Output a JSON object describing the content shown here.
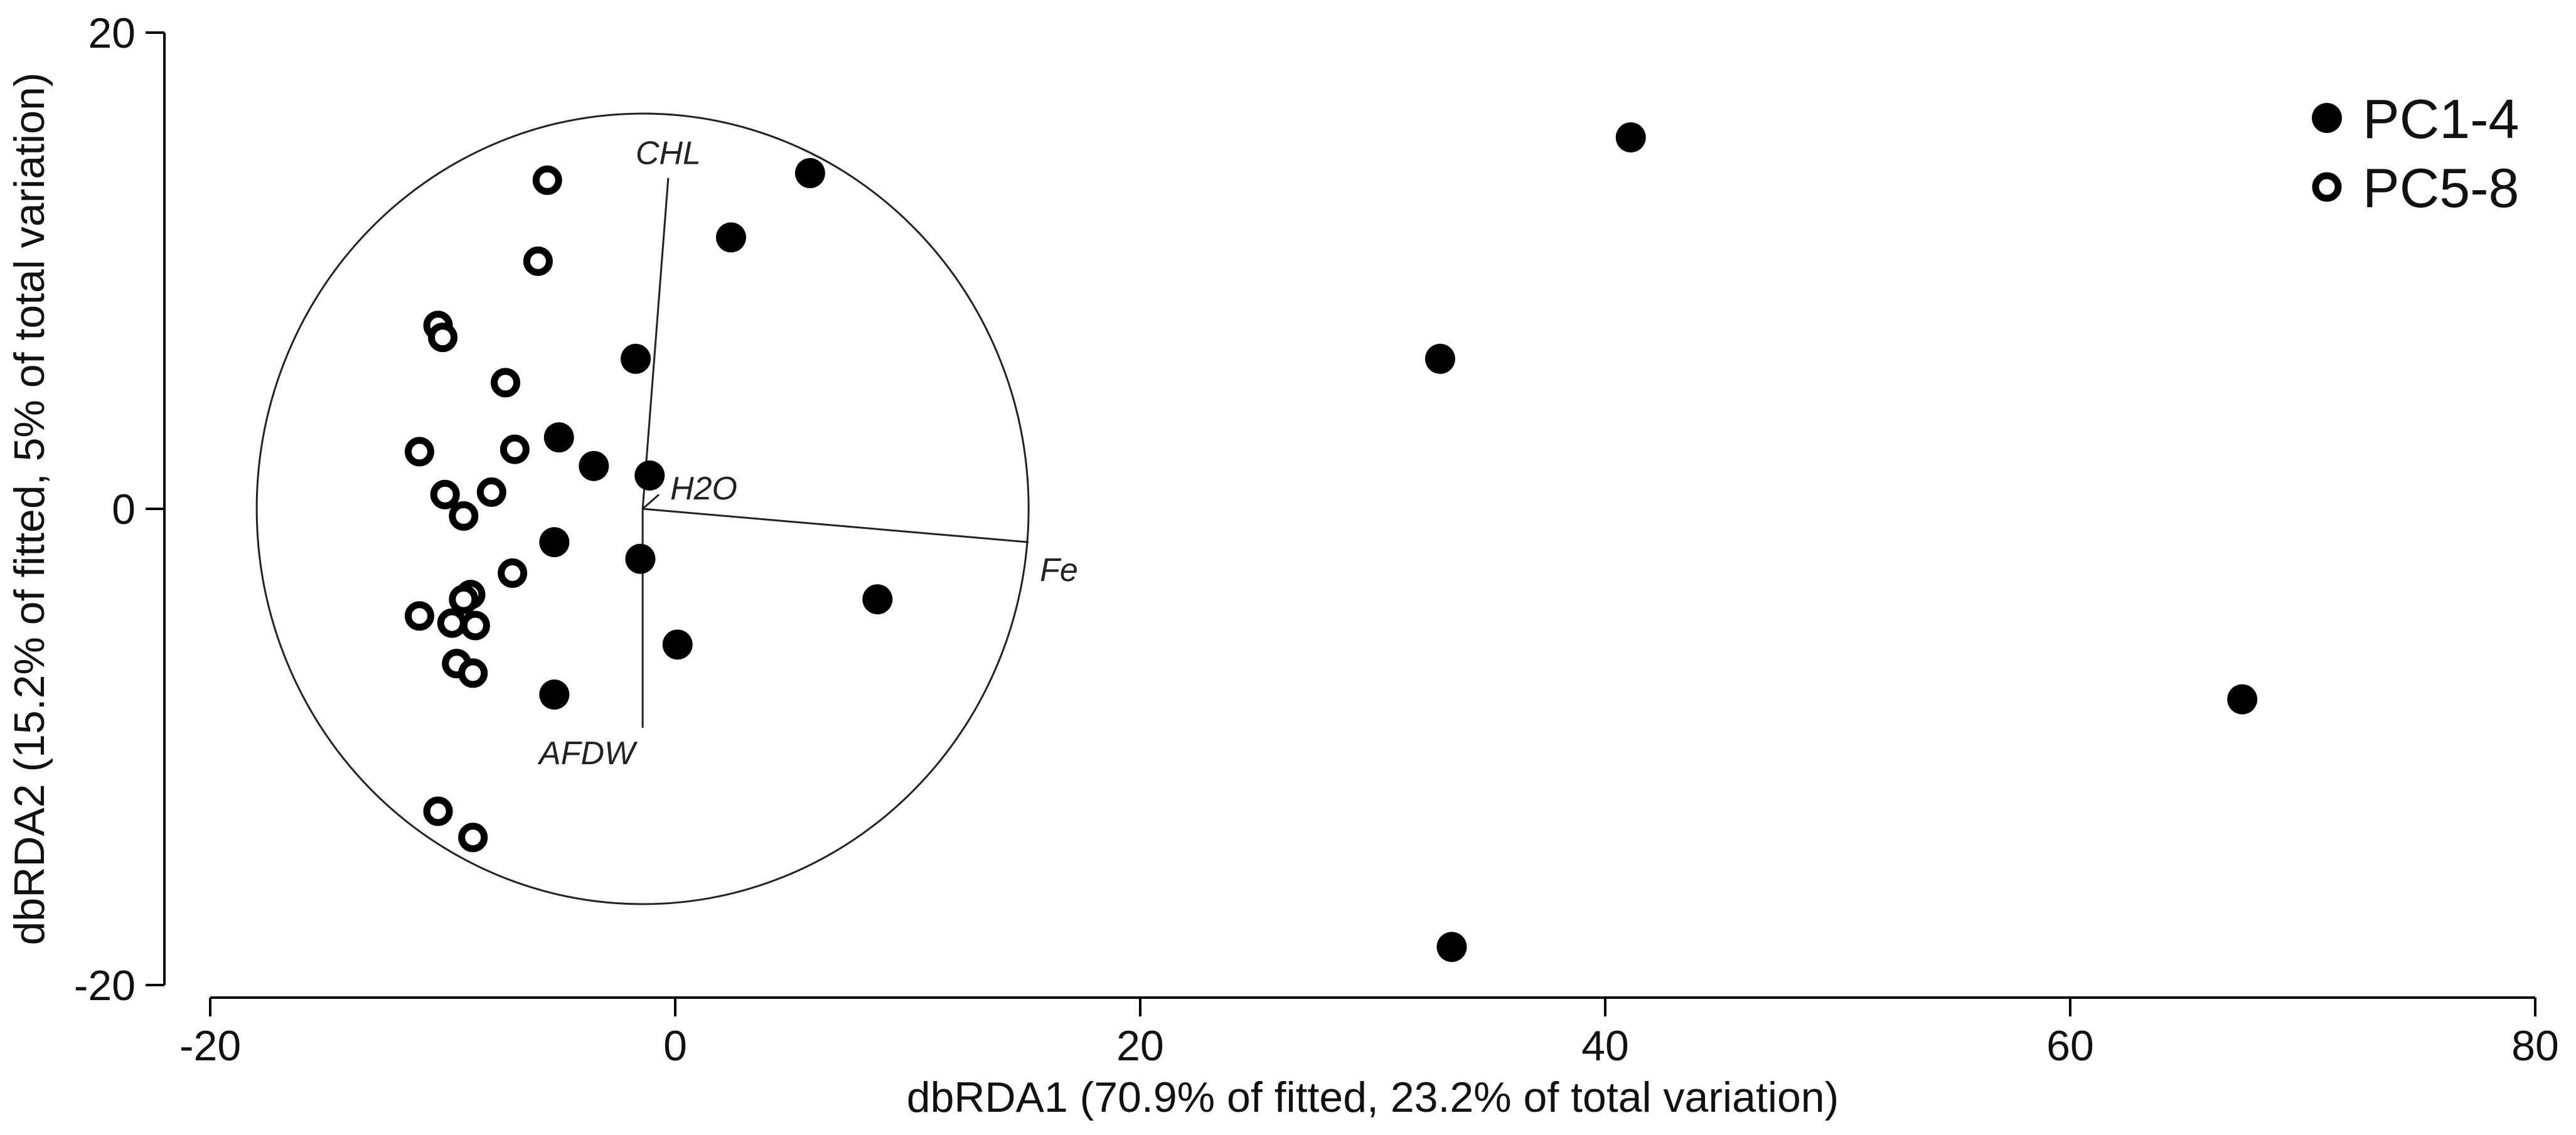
{
  "chart_data": {
    "type": "scatter",
    "xlabel": "dbRDA1 (70.9% of fitted, 23.2% of total variation)",
    "ylabel": "dbRDA2 (15.2% of fitted, 5% of total variation)",
    "xlim": [
      -20,
      80
    ],
    "ylim": [
      -20,
      20
    ],
    "xticks": [
      "-20",
      "0",
      "20",
      "40",
      "60",
      "80"
    ],
    "yticks": [
      "20",
      "0",
      "-20"
    ],
    "legend_position": "top-right",
    "series": [
      {
        "name": "PC1-4",
        "marker": "filled-circle",
        "color": "#000000",
        "points": [
          [
            5.8,
            14.1
          ],
          [
            41.1,
            15.6
          ],
          [
            2.4,
            11.4
          ],
          [
            -1.7,
            6.3
          ],
          [
            32.9,
            6.3
          ],
          [
            -5.0,
            3.0
          ],
          [
            -3.5,
            1.8
          ],
          [
            -1.1,
            1.4
          ],
          [
            -5.2,
            -1.4
          ],
          [
            -1.5,
            -2.1
          ],
          [
            8.7,
            -3.8
          ],
          [
            0.1,
            -5.7
          ],
          [
            -5.2,
            -7.8
          ],
          [
            67.4,
            -8.0
          ],
          [
            33.4,
            -18.4
          ]
        ]
      },
      {
        "name": "PC5-8",
        "marker": "open-circle",
        "color": "#000000",
        "points": [
          [
            -5.5,
            13.8
          ],
          [
            -5.9,
            10.4
          ],
          [
            -10.2,
            7.7
          ],
          [
            -10.0,
            7.2
          ],
          [
            -7.3,
            5.3
          ],
          [
            -11.0,
            2.4
          ],
          [
            -6.9,
            2.5
          ],
          [
            -9.9,
            0.6
          ],
          [
            -7.9,
            0.7
          ],
          [
            -9.1,
            -0.3
          ],
          [
            -7.0,
            -2.7
          ],
          [
            -8.8,
            -3.6
          ],
          [
            -9.1,
            -3.8
          ],
          [
            -11.0,
            -4.5
          ],
          [
            -9.6,
            -4.8
          ],
          [
            -8.6,
            -4.9
          ],
          [
            -9.4,
            -6.5
          ],
          [
            -8.7,
            -6.9
          ],
          [
            -10.2,
            -12.7
          ],
          [
            -8.7,
            -13.8
          ]
        ]
      }
    ],
    "vectors": [
      {
        "label": "CHL",
        "x": -0.3,
        "y": 13.9
      },
      {
        "label": "H2O",
        "x": -0.7,
        "y": 0.6
      },
      {
        "label": "Fe",
        "x": 15.2,
        "y": -1.4
      },
      {
        "label": "AFDW",
        "x": -1.4,
        "y": -9.2
      }
    ],
    "circle": {
      "center": [
        -1.4,
        0
      ],
      "radius": 16.6
    }
  }
}
